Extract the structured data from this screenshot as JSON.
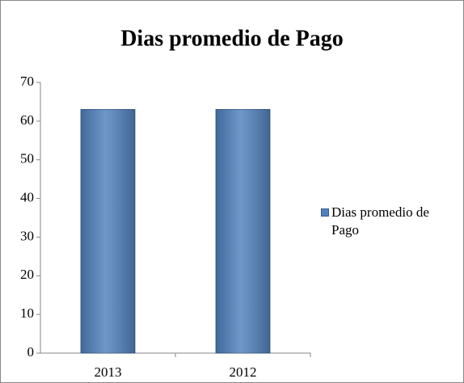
{
  "chart_data": {
    "type": "bar",
    "title": "Dias promedio de Pago",
    "categories": [
      "2013",
      "2012"
    ],
    "series": [
      {
        "name": "Dias promedio de Pago",
        "color": "#4f81bd",
        "values": [
          63,
          63
        ]
      }
    ],
    "ylim": [
      0,
      70
    ],
    "yticks": [
      0,
      10,
      20,
      30,
      40,
      50,
      60,
      70
    ],
    "grid": false,
    "legend": "right"
  }
}
